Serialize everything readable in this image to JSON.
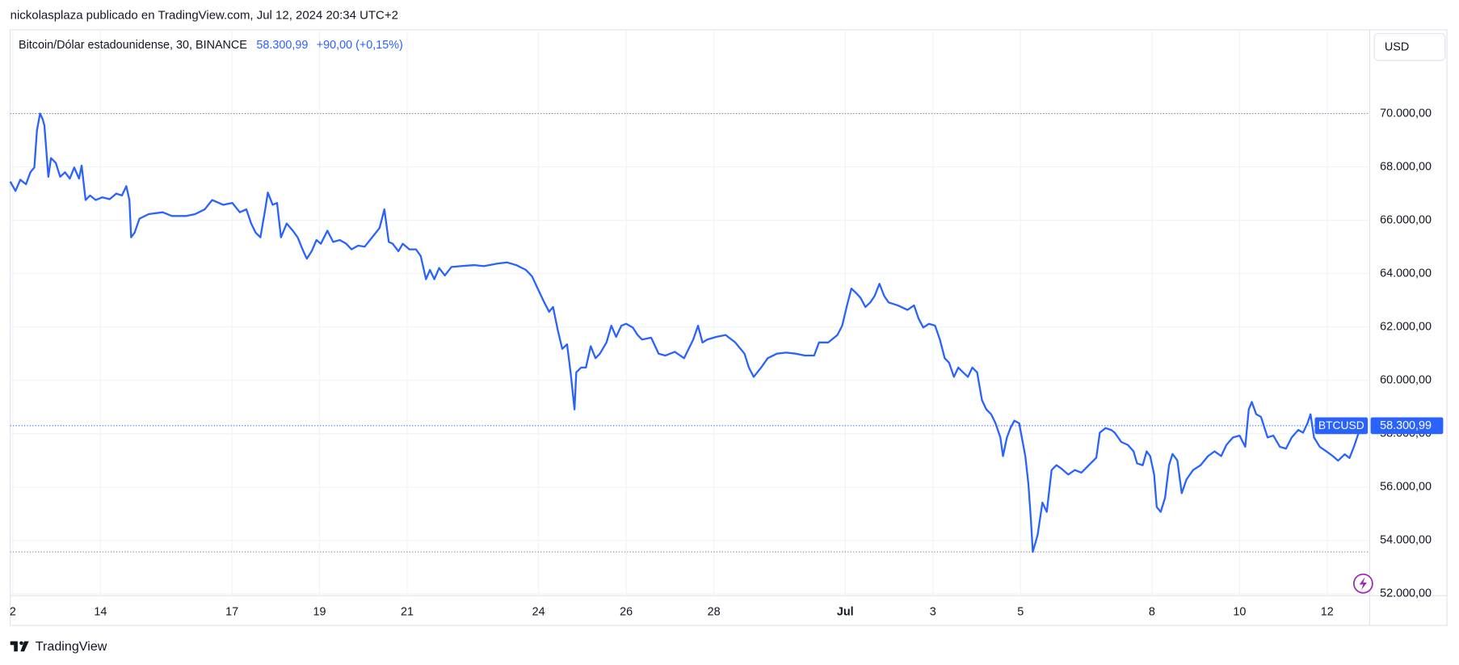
{
  "header": {
    "byline": "nickolasplaza publicado en TradingView.com, Jul 12, 2024 20:34 UTC+2",
    "currency": "USD",
    "footer": "TradingView"
  },
  "chart_data": {
    "type": "line",
    "symbol": "BTCUSD",
    "price_label": "58.300,99",
    "change": "+90,00 (+0,15%)",
    "x": [
      11.94,
      12.06,
      12.17,
      12.3,
      12.4,
      12.49,
      12.55,
      12.62,
      12.68,
      12.72,
      12.81,
      12.87,
      12.98,
      13.08,
      13.19,
      13.3,
      13.4,
      13.51,
      13.57,
      13.66,
      13.76,
      13.89,
      14.04,
      14.21,
      14.36,
      14.49,
      14.59,
      14.66,
      14.7,
      14.78,
      14.89,
      15.1,
      15.42,
      15.63,
      15.95,
      16.16,
      16.38,
      16.55,
      16.8,
      17.01,
      17.18,
      17.33,
      17.44,
      17.54,
      17.65,
      17.76,
      17.82,
      17.93,
      18.03,
      18.12,
      18.25,
      18.39,
      18.5,
      18.63,
      18.71,
      18.82,
      18.93,
      19.03,
      19.18,
      19.31,
      19.46,
      19.61,
      19.73,
      19.88,
      20.03,
      20.2,
      20.37,
      20.48,
      20.58,
      20.67,
      20.8,
      20.9,
      21.05,
      21.2,
      21.31,
      21.43,
      21.52,
      21.62,
      21.73,
      21.86,
      22.01,
      22.22,
      22.54,
      22.75,
      23.07,
      23.28,
      23.49,
      23.71,
      23.85,
      23.98,
      24.13,
      24.24,
      24.33,
      24.44,
      24.54,
      24.65,
      24.73,
      24.82,
      24.86,
      24.97,
      25.08,
      25.19,
      25.3,
      25.4,
      25.55,
      25.66,
      25.77,
      25.89,
      26.0,
      26.15,
      26.26,
      26.36,
      26.57,
      26.74,
      26.89,
      27.11,
      27.32,
      27.53,
      27.64,
      27.74,
      27.85,
      28.06,
      28.27,
      28.49,
      28.7,
      28.8,
      28.91,
      29.08,
      29.23,
      29.44,
      29.65,
      29.87,
      30.08,
      30.29,
      30.4,
      30.61,
      30.82,
      30.93,
      31.04,
      31.14,
      31.25,
      31.35,
      31.46,
      31.57,
      31.67,
      31.78,
      31.89,
      31.99,
      32.2,
      32.42,
      32.57,
      32.67,
      32.78,
      32.91,
      33.05,
      33.16,
      33.27,
      33.37,
      33.48,
      33.58,
      33.69,
      33.8,
      33.9,
      34.01,
      34.12,
      34.22,
      34.33,
      34.43,
      34.54,
      34.6,
      34.69,
      34.77,
      34.86,
      34.97,
      35.03,
      35.11,
      35.18,
      35.24,
      35.28,
      35.39,
      35.5,
      35.6,
      35.71,
      35.82,
      35.92,
      36.09,
      36.24,
      36.39,
      36.56,
      36.73,
      36.81,
      36.94,
      37.07,
      37.15,
      37.3,
      37.45,
      37.58,
      37.66,
      37.79,
      37.88,
      37.96,
      38.05,
      38.11,
      38.2,
      38.3,
      38.39,
      38.47,
      38.58,
      38.68,
      38.79,
      38.94,
      39.11,
      39.28,
      39.43,
      39.58,
      39.7,
      39.85,
      40.0,
      40.13,
      40.21,
      40.28,
      40.38,
      40.49,
      40.64,
      40.77,
      40.92,
      41.06,
      41.19,
      41.34,
      41.45,
      41.55,
      41.62,
      41.7,
      41.83,
      41.98,
      42.13,
      42.25,
      42.4,
      42.51,
      42.61,
      42.72,
      42.82
    ],
    "series": [
      {
        "name": "Bitcoin/Dólar estadounidense, 30, BINANCE",
        "color": "#2962ff",
        "values": [
          67450,
          67100,
          67520,
          67350,
          67800,
          67980,
          69370,
          70000,
          69790,
          69550,
          67630,
          68330,
          68150,
          67630,
          67800,
          67560,
          67980,
          67560,
          68050,
          66760,
          66930,
          66760,
          66860,
          66790,
          67000,
          66930,
          67280,
          66760,
          65360,
          65540,
          66060,
          66230,
          66300,
          66160,
          66160,
          66230,
          66410,
          66760,
          66580,
          66650,
          66300,
          66410,
          65880,
          65540,
          65360,
          66410,
          67040,
          66580,
          66650,
          65360,
          65880,
          65610,
          65360,
          64840,
          64560,
          64840,
          65260,
          65120,
          65610,
          65190,
          65260,
          65120,
          64910,
          65050,
          65010,
          65360,
          65710,
          66410,
          65190,
          65120,
          64840,
          65120,
          64910,
          64910,
          64660,
          63790,
          64140,
          63790,
          64210,
          63930,
          64250,
          64280,
          64320,
          64280,
          64380,
          64420,
          64320,
          64140,
          63900,
          63440,
          62920,
          62570,
          62750,
          61870,
          61180,
          61350,
          60300,
          58910,
          60300,
          60480,
          60480,
          61280,
          60830,
          61000,
          61420,
          62050,
          61630,
          62050,
          62120,
          61980,
          61700,
          61530,
          61600,
          61000,
          60930,
          61070,
          60830,
          61530,
          62050,
          61420,
          61530,
          61630,
          61700,
          61420,
          61000,
          60480,
          60130,
          60480,
          60830,
          61000,
          61040,
          61000,
          60930,
          60930,
          61420,
          61420,
          61700,
          62050,
          62810,
          63440,
          63270,
          63090,
          62750,
          62920,
          63160,
          63620,
          63160,
          62920,
          62810,
          62640,
          62810,
          62330,
          61980,
          62120,
          62050,
          61530,
          60830,
          60660,
          60130,
          60480,
          60300,
          60130,
          60480,
          60300,
          59260,
          58910,
          58730,
          58390,
          57860,
          57160,
          57860,
          58210,
          58490,
          58390,
          57860,
          57160,
          56120,
          54720,
          53570,
          54200,
          55420,
          55070,
          56640,
          56820,
          56710,
          56470,
          56640,
          56540,
          56820,
          57100,
          58040,
          58210,
          58140,
          58040,
          57690,
          57580,
          57340,
          56890,
          56820,
          57340,
          57160,
          56470,
          55250,
          55070,
          55600,
          56820,
          57240,
          57000,
          55770,
          56290,
          56640,
          56820,
          57160,
          57340,
          57160,
          57580,
          57860,
          57930,
          57510,
          58910,
          59190,
          58730,
          58630,
          57860,
          57930,
          57510,
          57440,
          57860,
          58140,
          58040,
          58390,
          58730,
          57860,
          57510,
          57340,
          57160,
          56990,
          57230,
          57090,
          57510,
          58040,
          58300.99
        ]
      }
    ],
    "xlim": [
      11.94,
      42.97
    ],
    "xticks": [
      {
        "value": 12,
        "label": "2"
      },
      14,
      17,
      19,
      21,
      24,
      26,
      28,
      {
        "value": 31,
        "label": "Jul"
      },
      {
        "value": 33,
        "label": "3"
      },
      {
        "value": 35,
        "label": "5"
      },
      {
        "value": 38,
        "label": "8"
      },
      {
        "value": 40,
        "label": "10"
      },
      {
        "value": 42,
        "label": "12"
      }
    ],
    "ylim": [
      51930,
      73140
    ],
    "yticks": [
      {
        "value": 52000,
        "label": "52.000,00"
      },
      {
        "value": 54000,
        "label": "54.000,00"
      },
      {
        "value": 56000,
        "label": "56.000,00"
      },
      {
        "value": 58000,
        "label": "58.000,00"
      },
      {
        "value": 60000,
        "label": "60.000,00"
      },
      {
        "value": 62000,
        "label": "62.000,00"
      },
      {
        "value": 64000,
        "label": "64.000,00"
      },
      {
        "value": 66000,
        "label": "66.000,00"
      },
      {
        "value": 68000,
        "label": "68.000,00"
      },
      {
        "value": 70000,
        "label": "70.000,00"
      }
    ],
    "grid": true
  }
}
